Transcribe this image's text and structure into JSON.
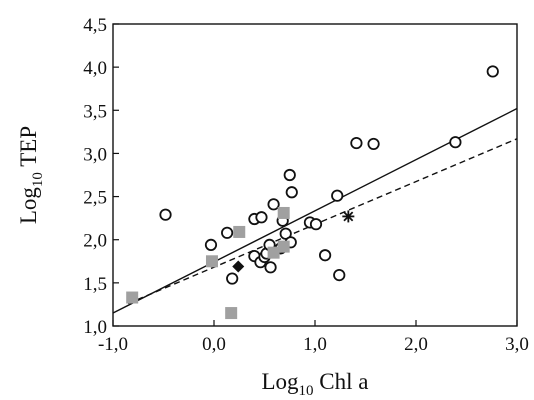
{
  "chart_data": {
    "type": "scatter",
    "xlabel": {
      "base": "Log",
      "sub": "10",
      "rest": " Chl a"
    },
    "ylabel": {
      "base": "Log",
      "sub": "10",
      "rest": " TEP"
    },
    "xlim": [
      -1.0,
      3.0
    ],
    "ylim": [
      1.0,
      4.5
    ],
    "xticks": [
      -1.0,
      0.0,
      1.0,
      2.0,
      3.0
    ],
    "xtick_labels": [
      "-1,0",
      "0,0",
      "1,0",
      "2,0",
      "3,0"
    ],
    "yticks": [
      1.0,
      1.5,
      2.0,
      2.5,
      3.0,
      3.5,
      4.0,
      4.5
    ],
    "ytick_labels": [
      "1,0",
      "1,5",
      "2,0",
      "2,5",
      "3,0",
      "3,5",
      "4,0",
      "4,5"
    ],
    "grid": false,
    "legend": "none",
    "series": [
      {
        "marker": "open-circle",
        "points": [
          [
            -0.48,
            2.29
          ],
          [
            -0.03,
            1.94
          ],
          [
            0.13,
            2.08
          ],
          [
            0.18,
            1.55
          ],
          [
            0.4,
            1.81
          ],
          [
            0.4,
            2.24
          ],
          [
            0.46,
            1.74
          ],
          [
            0.47,
            2.26
          ],
          [
            0.5,
            1.8
          ],
          [
            0.52,
            1.84
          ],
          [
            0.55,
            1.94
          ],
          [
            0.56,
            1.68
          ],
          [
            0.59,
            2.41
          ],
          [
            0.66,
            1.9
          ],
          [
            0.68,
            2.22
          ],
          [
            0.71,
            2.07
          ],
          [
            0.75,
            2.75
          ],
          [
            0.77,
            2.55
          ],
          [
            0.76,
            1.97
          ],
          [
            0.95,
            2.2
          ],
          [
            1.01,
            2.18
          ],
          [
            1.1,
            1.82
          ],
          [
            1.22,
            2.51
          ],
          [
            1.24,
            1.59
          ],
          [
            1.41,
            3.12
          ],
          [
            1.58,
            3.11
          ],
          [
            2.39,
            3.13
          ],
          [
            2.76,
            3.95
          ]
        ]
      },
      {
        "marker": "gray-square",
        "points": [
          [
            -0.81,
            1.33
          ],
          [
            -0.02,
            1.75
          ],
          [
            0.17,
            1.15
          ],
          [
            0.25,
            2.09
          ],
          [
            0.59,
            1.85
          ],
          [
            0.69,
            1.92
          ],
          [
            0.69,
            2.31
          ]
        ]
      },
      {
        "marker": "black-diamond",
        "points": [
          [
            0.24,
            1.69
          ]
        ]
      },
      {
        "marker": "asterisk",
        "points": [
          [
            1.33,
            2.27
          ]
        ]
      }
    ],
    "lines": [
      {
        "style": "solid",
        "from": [
          -1.0,
          1.15
        ],
        "to": [
          3.0,
          3.52
        ]
      },
      {
        "style": "dashed",
        "from": [
          -0.85,
          1.26
        ],
        "to": [
          3.0,
          3.17
        ]
      }
    ],
    "colors": {
      "axis": "#111111",
      "square": "#a0a0a0",
      "marker": "#111111"
    }
  }
}
